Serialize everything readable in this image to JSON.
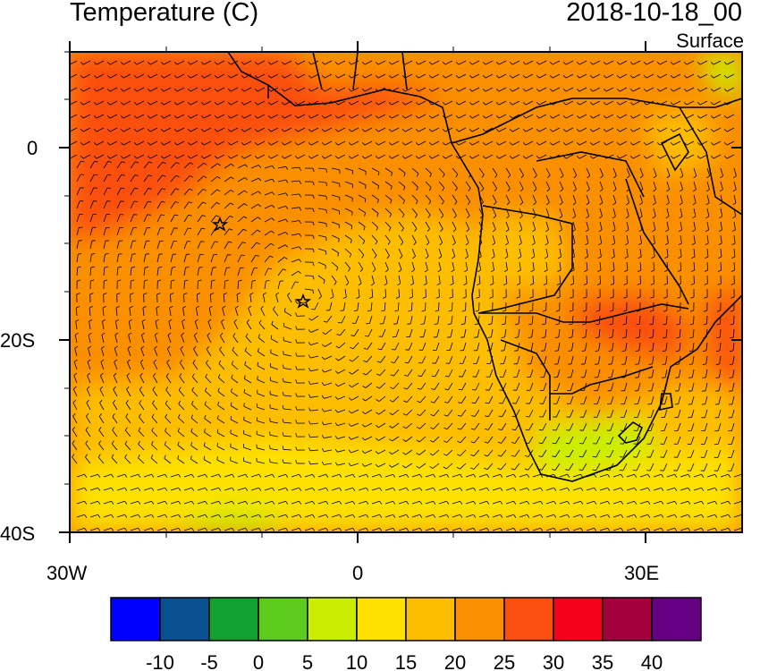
{
  "header": {
    "title": "Temperature (C)",
    "datetime": "2018-10-18_00",
    "level": "Surface"
  },
  "axes": {
    "y_ticks": [
      "0",
      "20S",
      "40S"
    ],
    "x_ticks": [
      "30W",
      "0",
      "30E"
    ]
  },
  "map_data": {
    "variable": "Temperature",
    "units": "C",
    "overlay": "wind barbs",
    "region": "South Atlantic / Southern Africa",
    "lon_range": [
      -30,
      40
    ],
    "lat_range": [
      -40,
      10
    ],
    "markers": [
      {
        "type": "star",
        "lon": -14,
        "lat": -8
      },
      {
        "type": "star",
        "lon": -5.6,
        "lat": -16
      }
    ]
  },
  "colorbar": {
    "colors": [
      "#0000ff",
      "#0a5090",
      "#11a12e",
      "#5ccb1c",
      "#caee00",
      "#fde100",
      "#fdbd00",
      "#fa8f00",
      "#fb4f11",
      "#f5001d",
      "#a3003e",
      "#650082"
    ],
    "labels": [
      "-10",
      "-5",
      "0",
      "5",
      "10",
      "15",
      "20",
      "25",
      "30",
      "35",
      "40"
    ]
  }
}
